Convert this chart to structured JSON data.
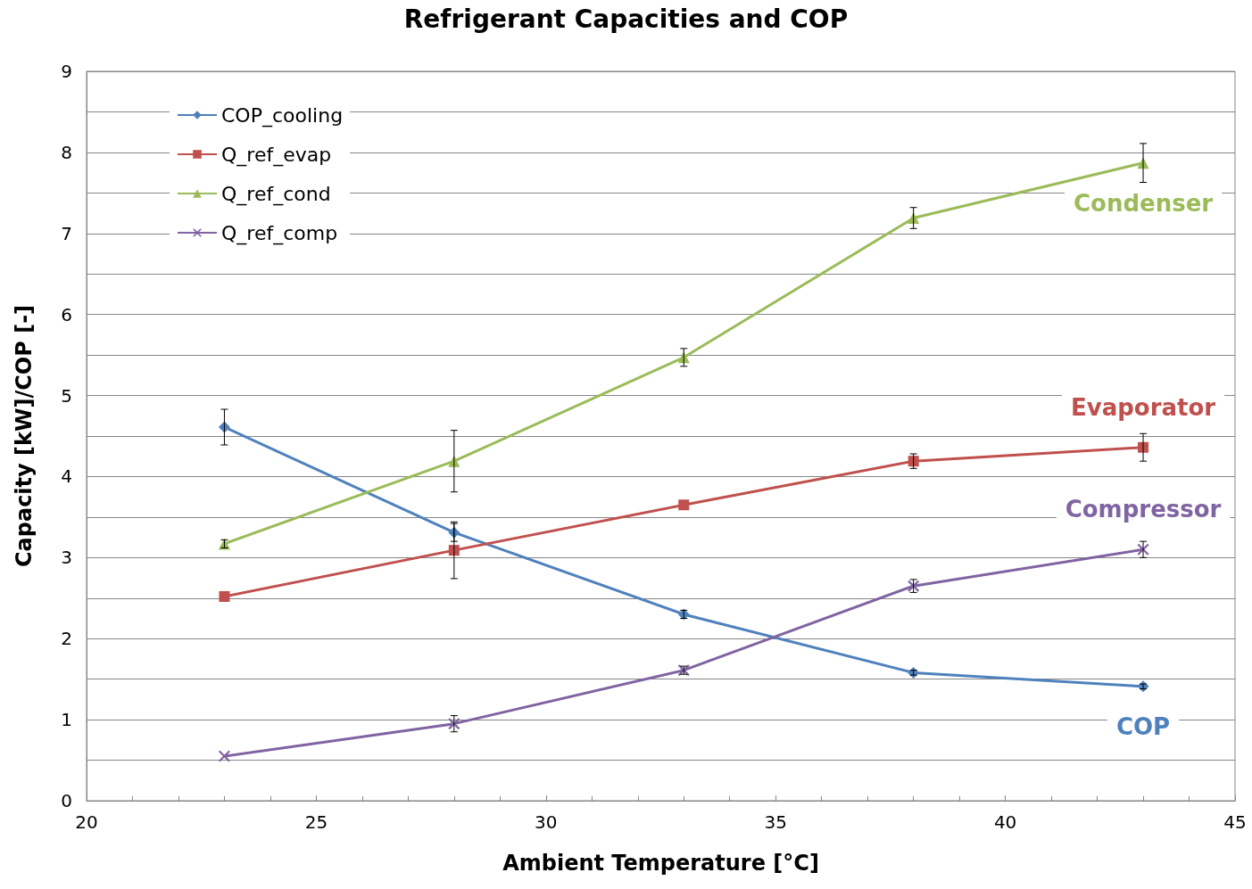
{
  "chart_data": {
    "type": "line",
    "title": "Refrigerant Capacities and COP",
    "xlabel": "Ambient Temperature [°C]",
    "ylabel": "Capacity [kW]/COP [-]",
    "x": [
      23,
      28,
      33,
      38,
      43
    ],
    "xlim": [
      20,
      45
    ],
    "xticks": [
      20,
      25,
      30,
      35,
      40,
      45
    ],
    "ylim": [
      0,
      9
    ],
    "yticks": [
      0,
      {
        "value": 0.5,
        "label": null
      },
      1,
      {
        "value": 1.5,
        "label": null
      },
      2,
      {
        "value": 2.5,
        "label": null
      },
      3,
      {
        "value": 3.5,
        "label": null
      },
      4,
      {
        "value": 4.5,
        "label": null
      },
      5,
      {
        "value": 5.5,
        "label": null
      },
      6,
      {
        "value": 6.5,
        "label": null
      },
      7,
      {
        "value": 7.5,
        "label": null
      },
      8,
      {
        "value": 8.5,
        "label": null
      },
      9
    ],
    "grid": "y",
    "legend": "top left",
    "series": [
      {
        "name": "COP_cooling",
        "color": "#4f81bd",
        "marker": "diamond",
        "values": [
          4.61,
          3.31,
          2.3,
          1.58,
          1.41
        ],
        "errors": [
          0.22,
          0.11,
          0.05,
          0.03,
          0.03
        ]
      },
      {
        "name": "Q_ref_evap",
        "color": "#c0504d",
        "marker": "square",
        "values": [
          2.52,
          3.09,
          3.65,
          4.19,
          4.36
        ],
        "errors": [
          null,
          0.35,
          null,
          0.09,
          0.17
        ]
      },
      {
        "name": "Q_ref_cond",
        "color": "#9bbb59",
        "marker": "triangle",
        "values": [
          3.17,
          4.19,
          5.47,
          7.19,
          7.87
        ],
        "errors": [
          0.05,
          0.38,
          0.11,
          0.13,
          0.24
        ]
      },
      {
        "name": "Q_ref_comp",
        "color": "#8064a2",
        "marker": "cross",
        "values": [
          0.55,
          0.95,
          1.61,
          2.65,
          3.1
        ],
        "errors": [
          null,
          0.1,
          0.05,
          0.08,
          0.1
        ]
      }
    ],
    "annotations": [
      "COP",
      "Evaporator",
      "Condenser",
      "Compressor"
    ]
  }
}
